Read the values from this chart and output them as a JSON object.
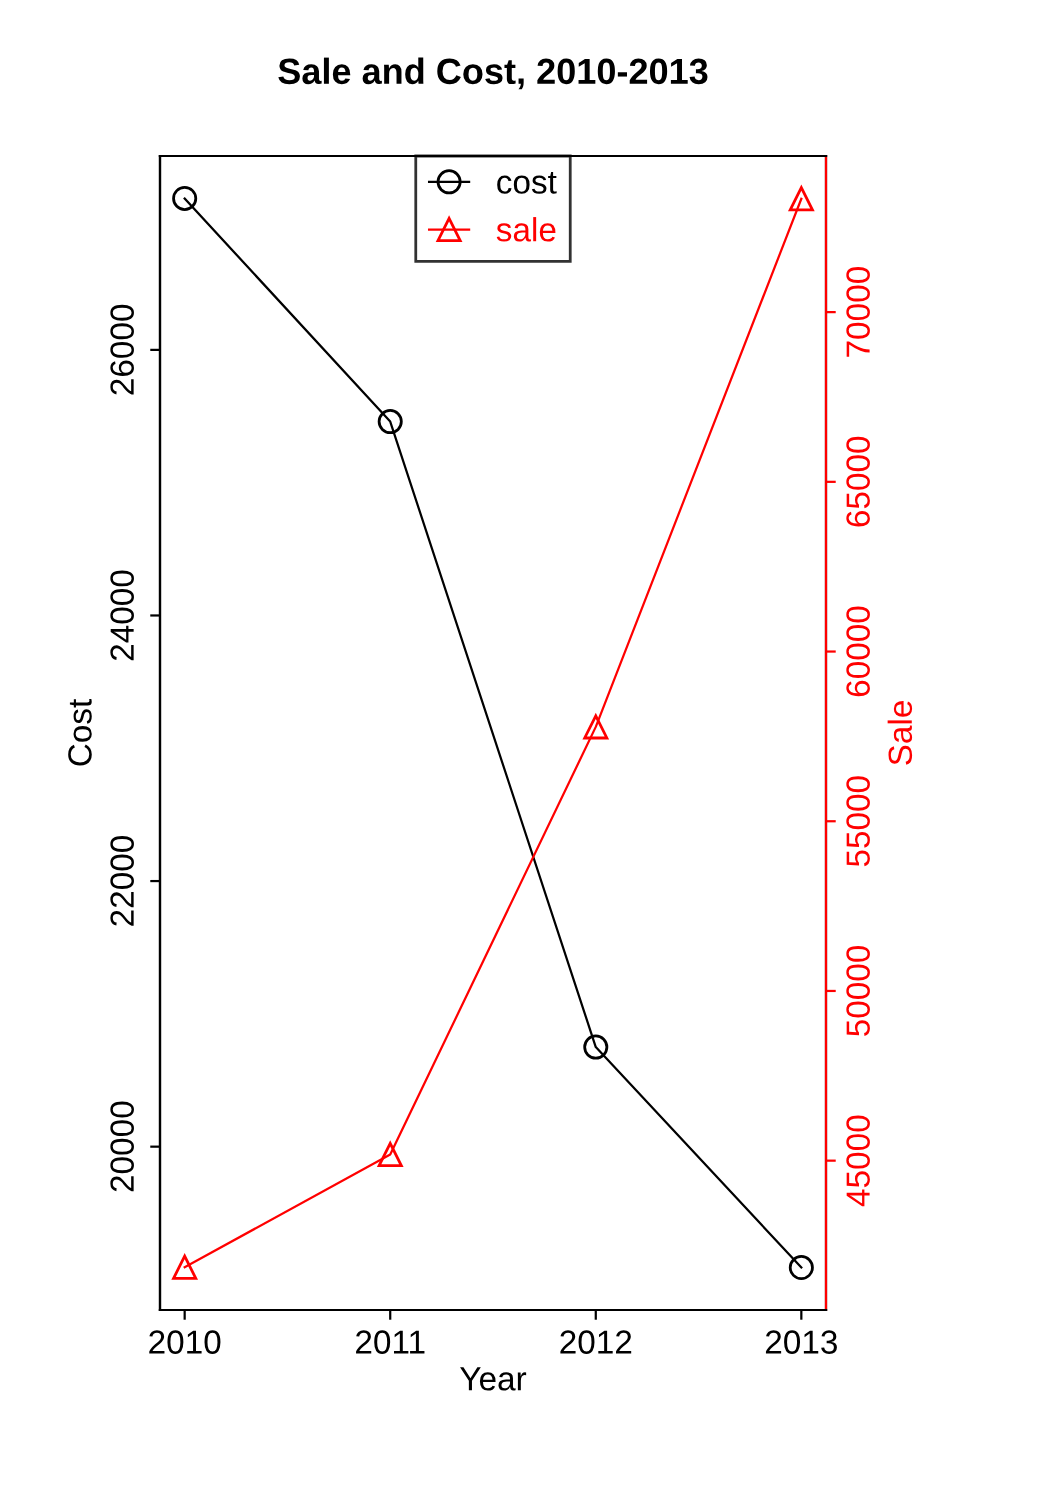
{
  "chart_data": {
    "type": "line",
    "title": "Sale and Cost, 2010-2013",
    "xlabel": "Year",
    "ylabel": "Cost",
    "y2label": "Sale",
    "x": [
      2010,
      2011,
      2012,
      2013
    ],
    "series": [
      {
        "name": "cost",
        "color": "#000000",
        "marker": "circle",
        "values": [
          27140,
          25460,
          20750,
          19090
        ]
      },
      {
        "name": "sale",
        "color": "#ff0000",
        "marker": "triangle",
        "axis": "y2",
        "values": [
          41860,
          45180,
          57780,
          73340
        ]
      }
    ],
    "xlim": [
      2009.88,
      2013.12
    ],
    "xticks": [
      2010,
      2011,
      2012,
      2013
    ],
    "ylim": [
      18770,
      27460
    ],
    "yticks": [
      20000,
      22000,
      24000,
      26000
    ],
    "y2lim": [
      40600,
      74600
    ],
    "y2ticks": [
      45000,
      50000,
      55000,
      60000,
      65000,
      70000
    ],
    "legend": "top",
    "grid": false
  }
}
